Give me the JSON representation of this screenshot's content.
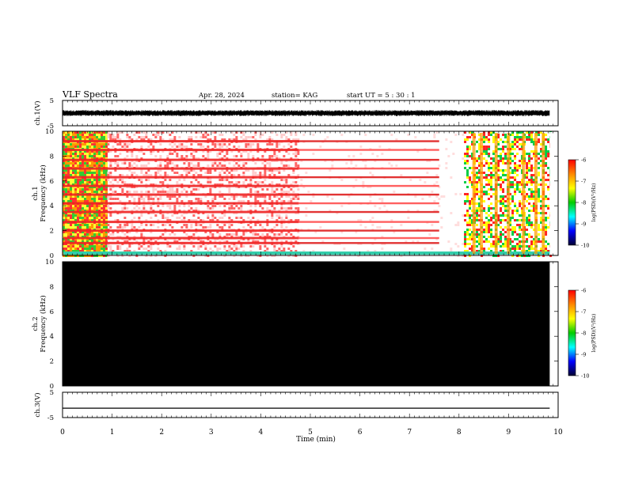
{
  "header": {
    "title": "VLF Spectra",
    "date": "Apr. 28, 2024",
    "station": "station= KAG",
    "start": "start  UT  =   5  : 30 : 1"
  },
  "colorbar": {
    "label": "log(PSD)(V²/Hz)",
    "ticks": [
      -6,
      -7,
      -8,
      -9,
      -10
    ],
    "colors": [
      "#ff0000",
      "#ff8800",
      "#ffff00",
      "#00cc00",
      "#00ffff",
      "#0000ff",
      "#000033"
    ]
  },
  "chart_data": [
    {
      "type": "line",
      "panel": "ch1-waveform",
      "ylabel": "ch.1(V)",
      "ylim": [
        -5,
        5
      ],
      "yticks": [
        "5",
        "-5"
      ],
      "description_values": {
        "x_range_min": [
          0,
          9.83
        ],
        "amplitude_v": [
          -1.2,
          1.2
        ]
      }
    },
    {
      "type": "heatmap",
      "panel": "ch1-spectrogram",
      "ylabel": "ch.1 Frequency (kHz)",
      "ylim": [
        0,
        10
      ],
      "yticks": [
        0,
        2,
        4,
        6,
        8,
        10
      ],
      "xlim": [
        0,
        10
      ],
      "bands_khz": [
        0.2,
        1.0,
        1.4,
        2.0,
        2.7,
        3.5,
        4.2,
        4.9,
        5.6,
        6.3,
        7.0,
        7.7,
        8.5,
        9.2
      ],
      "segments_min": [
        {
          "start": 0.0,
          "end": 0.9,
          "level": "high"
        },
        {
          "start": 0.9,
          "end": 4.75,
          "level": "medium"
        },
        {
          "start": 4.75,
          "end": 8.1,
          "level": "banded"
        },
        {
          "start": 8.1,
          "end": 9.83,
          "level": "bursts"
        }
      ],
      "data_end_min": 9.83
    },
    {
      "type": "heatmap",
      "panel": "ch2-spectrogram",
      "ylabel": "ch.2 Frequency (kHz)",
      "ylim": [
        0,
        10
      ],
      "yticks": [
        0,
        2,
        4,
        6,
        8,
        10
      ],
      "xlim": [
        0,
        10
      ],
      "data_end_min": 9.83,
      "fill": "#000000"
    },
    {
      "type": "line",
      "panel": "ch3-waveform",
      "ylabel": "ch.3(V)",
      "ylim": [
        -5,
        5
      ],
      "yticks": [
        "5",
        "-5"
      ],
      "x": [
        0,
        9.83
      ],
      "y": [
        -1.3,
        -1.3
      ]
    }
  ],
  "xaxis": {
    "label": "Time  (min)",
    "ticks": [
      0,
      1,
      2,
      3,
      4,
      5,
      6,
      7,
      8,
      9,
      10
    ]
  }
}
